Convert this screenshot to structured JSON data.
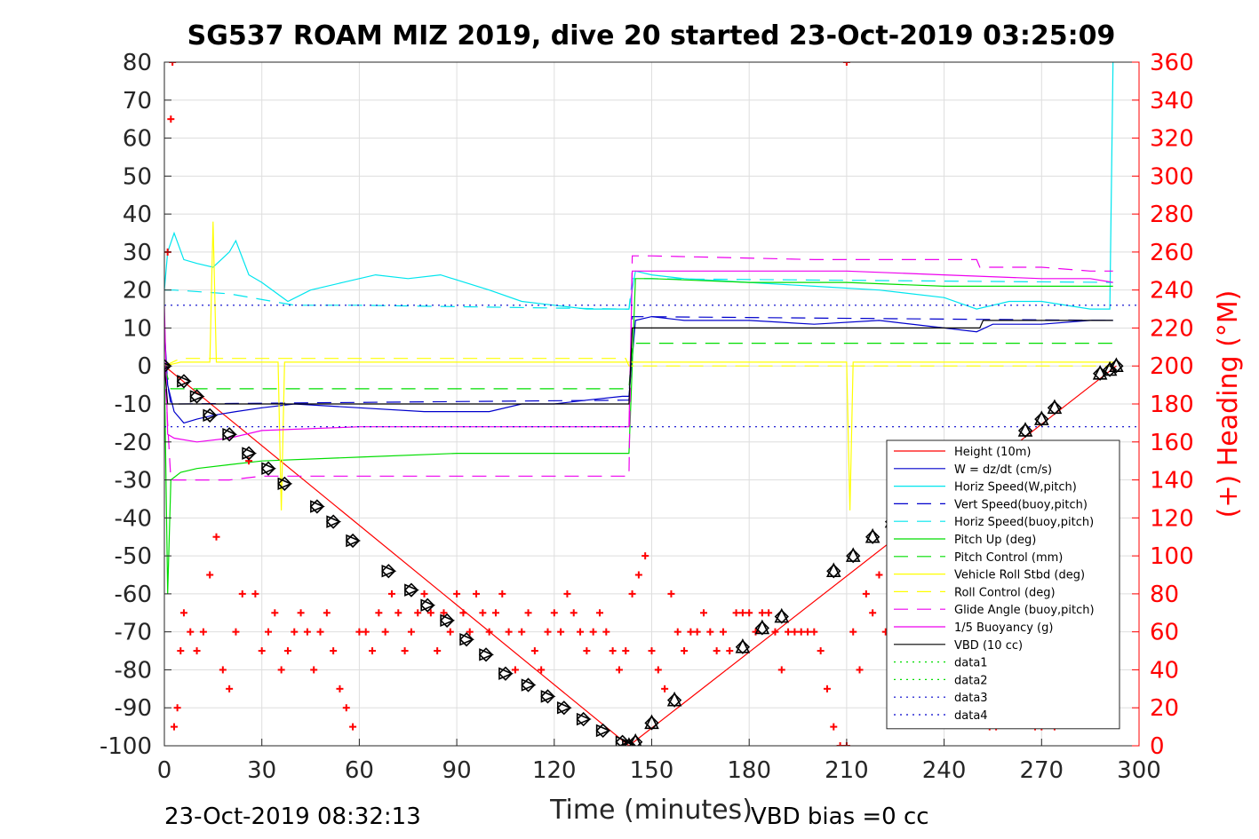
{
  "chart_data": {
    "type": "line",
    "title": "SG537 ROAM MIZ 2019, dive 20 started 23-Oct-2019 03:25:09",
    "xlabel": "Time (minutes)",
    "ylabel_right": "(+) Heading (°M)",
    "xlim": [
      0,
      300
    ],
    "ylim": [
      -100,
      80
    ],
    "ylim_right": [
      0,
      360
    ],
    "x_ticks": [
      "0",
      "30",
      "60",
      "90",
      "120",
      "150",
      "180",
      "210",
      "240",
      "270",
      "300"
    ],
    "y_ticks": [
      "80",
      "70",
      "60",
      "50",
      "40",
      "30",
      "20",
      "10",
      "0",
      "-10",
      "-20",
      "-30",
      "-40",
      "-50",
      "-60",
      "-70",
      "-80",
      "-90",
      "-100"
    ],
    "y_right_ticks": [
      "360",
      "340",
      "320",
      "300",
      "280",
      "260",
      "240",
      "220",
      "200",
      "180",
      "160",
      "140",
      "120",
      "100",
      "80",
      "60",
      "40",
      "20",
      "0"
    ],
    "grid": true,
    "legend_position": "lower-right",
    "footer_left": "23-Oct-2019 08:32:13",
    "footer_right": "VBD bias =0 cc",
    "series": [
      {
        "name": "Height (10m)",
        "color": "#ff0000",
        "dash": "solid",
        "x": [
          0,
          143,
          293
        ],
        "y": [
          0,
          -100,
          0
        ]
      },
      {
        "name": "W = dz/dt (cm/s)",
        "color": "#0000cc",
        "dash": "solid",
        "x": [
          0,
          1,
          3,
          6,
          10,
          15,
          22,
          30,
          40,
          60,
          80,
          100,
          110,
          120,
          130,
          141,
          143,
          145,
          150,
          160,
          180,
          200,
          220,
          240,
          250,
          255,
          270,
          285,
          292
        ],
        "y": [
          10,
          -5,
          -12,
          -15,
          -14,
          -13,
          -12,
          -11,
          -10,
          -11,
          -12,
          -12,
          -10,
          -10,
          -9,
          -8,
          -8,
          12,
          13,
          12,
          12,
          11,
          12,
          10,
          9,
          11,
          11,
          12,
          12
        ]
      },
      {
        "name": "Horiz Speed(W,pitch)",
        "color": "#00e5ee",
        "dash": "solid",
        "x": [
          0,
          1,
          3,
          6,
          10,
          15,
          20,
          22,
          26,
          30,
          38,
          45,
          55,
          65,
          75,
          85,
          100,
          110,
          120,
          130,
          141,
          143,
          145,
          150,
          160,
          180,
          200,
          220,
          240,
          250,
          260,
          270,
          285,
          291,
          292
        ],
        "y": [
          20,
          30,
          35,
          28,
          27,
          26,
          30,
          33,
          24,
          22,
          17,
          20,
          22,
          24,
          23,
          24,
          20,
          17,
          16,
          15,
          15,
          15,
          25,
          24,
          23,
          22,
          21,
          20,
          18,
          15,
          17,
          17,
          15,
          15,
          80
        ]
      },
      {
        "name": "Vert Speed(buoy,pitch)",
        "color": "#0000cc",
        "dash": "dashed",
        "x": [
          0,
          2,
          4,
          142,
          143,
          144,
          292
        ],
        "y": [
          0,
          -10,
          -10,
          -9,
          -9,
          13,
          12
        ]
      },
      {
        "name": "Horiz Speed(buoy,pitch)",
        "color": "#00e5ee",
        "dash": "dashed",
        "x": [
          0,
          3,
          20,
          40,
          60,
          142,
          143,
          144,
          292
        ],
        "y": [
          20,
          20,
          19,
          16,
          16,
          15,
          15,
          23,
          22
        ]
      },
      {
        "name": "Pitch Up (deg)",
        "color": "#00dd00",
        "dash": "solid",
        "x": [
          0,
          1,
          2,
          5,
          10,
          20,
          30,
          60,
          90,
          120,
          141,
          143,
          145,
          150,
          180,
          210,
          240,
          270,
          292
        ],
        "y": [
          0,
          -60,
          -30,
          -28,
          -27,
          -26,
          -25,
          -24,
          -23,
          -23,
          -23,
          -23,
          23,
          23,
          22,
          22,
          21,
          21,
          21
        ]
      },
      {
        "name": "Pitch Control (mm)",
        "color": "#00dd00",
        "dash": "dashed",
        "x": [
          0,
          2,
          4,
          142,
          143,
          144,
          292
        ],
        "y": [
          0,
          -6,
          -6,
          -6,
          -6,
          6,
          6
        ]
      },
      {
        "name": "Vehicle Roll Stbd (deg)",
        "color": "#ffff00",
        "dash": "solid",
        "x": [
          0,
          5,
          10,
          14,
          15,
          16,
          20,
          30,
          35,
          36,
          37,
          40,
          60,
          80,
          100,
          120,
          130,
          140,
          150,
          160,
          180,
          200,
          210,
          211,
          212,
          220,
          240,
          260,
          280,
          292
        ],
        "y": [
          0,
          1,
          1,
          1,
          38,
          1,
          1,
          1,
          1,
          -38,
          1,
          1,
          1,
          1,
          1,
          1,
          1,
          1,
          1,
          1,
          1,
          1,
          1,
          -38,
          1,
          1,
          1,
          1,
          1,
          1
        ]
      },
      {
        "name": "Roll Control (deg)",
        "color": "#ffff00",
        "dash": "dashed",
        "x": [
          0,
          5,
          142,
          143,
          144,
          292
        ],
        "y": [
          0,
          2,
          2,
          0,
          0,
          0
        ]
      },
      {
        "name": "Glide Angle (buoy,pitch)",
        "color": "#ee00ee",
        "dash": "dashed",
        "x": [
          0,
          2,
          4,
          10,
          20,
          30,
          60,
          90,
          120,
          142,
          143,
          144,
          150,
          200,
          250,
          251,
          270,
          285,
          292
        ],
        "y": [
          0,
          -30,
          -30,
          -30,
          -30,
          -29,
          -29,
          -29,
          -29,
          -29,
          -29,
          29,
          29,
          28,
          28,
          26,
          26,
          25,
          25
        ]
      },
      {
        "name": "1/5 Buoyancy (g)",
        "color": "#ee00ee",
        "dash": "solid",
        "x": [
          0,
          1,
          3,
          10,
          20,
          30,
          60,
          90,
          120,
          142,
          143,
          144,
          150,
          180,
          210,
          240,
          270,
          285,
          292
        ],
        "y": [
          16,
          -18,
          -19,
          -20,
          -19,
          -17,
          -16,
          -16,
          -16,
          -16,
          -16,
          25,
          25,
          25,
          25,
          24,
          23,
          23,
          22
        ]
      },
      {
        "name": "VBD (10 cc)",
        "color": "#000000",
        "dash": "solid",
        "x": [
          0,
          1,
          2,
          142,
          143,
          144,
          251,
          252,
          292
        ],
        "y": [
          0,
          -10,
          -10,
          -10,
          -10,
          10,
          10,
          12,
          12
        ]
      },
      {
        "name": "data1",
        "color": "#00dd00",
        "dash": "dotted",
        "x": [],
        "y": []
      },
      {
        "name": "data2",
        "color": "#00dd00",
        "dash": "dotted",
        "x": [],
        "y": []
      },
      {
        "name": "data3",
        "color": "#0000cc",
        "dash": "dotted",
        "x": [
          0,
          300
        ],
        "y": [
          16,
          16
        ]
      },
      {
        "name": "data4",
        "color": "#0000cc",
        "dash": "dotted",
        "x": [
          0,
          300
        ],
        "y": [
          -16,
          -16
        ]
      }
    ],
    "heading_series": {
      "color": "#ff0000",
      "marker": "+",
      "axis": "right",
      "x": [
        1,
        2,
        2.5,
        3,
        4,
        5,
        6,
        8,
        10,
        12,
        14,
        16,
        18,
        20,
        22,
        24,
        26,
        28,
        30,
        32,
        34,
        36,
        38,
        40,
        42,
        44,
        46,
        48,
        50,
        52,
        54,
        56,
        58,
        60,
        62,
        64,
        66,
        68,
        70,
        72,
        74,
        76,
        78,
        80,
        82,
        84,
        86,
        88,
        90,
        92,
        94,
        96,
        98,
        100,
        102,
        104,
        106,
        108,
        110,
        112,
        114,
        116,
        118,
        120,
        122,
        124,
        126,
        128,
        130,
        132,
        134,
        136,
        138,
        140,
        142,
        144,
        146,
        148,
        150,
        152,
        154,
        156,
        158,
        160,
        162,
        164,
        166,
        168,
        170,
        172,
        174,
        176,
        178,
        180,
        182,
        184,
        186,
        188,
        190,
        192,
        194,
        196,
        198,
        200,
        202,
        204,
        206,
        208,
        210,
        212,
        214,
        216,
        218,
        220,
        222,
        224,
        226,
        228,
        230,
        232,
        234,
        236,
        238,
        240,
        242,
        244,
        246,
        248,
        250,
        252,
        254,
        256,
        258,
        260,
        262,
        264,
        266,
        268,
        270,
        272,
        274,
        276,
        278,
        280,
        282,
        284,
        286,
        288,
        290,
        292,
        210
      ],
      "y": [
        260,
        330,
        360,
        10,
        20,
        50,
        70,
        60,
        50,
        60,
        90,
        110,
        40,
        30,
        60,
        80,
        150,
        80,
        50,
        60,
        70,
        40,
        50,
        60,
        70,
        60,
        40,
        60,
        70,
        50,
        30,
        20,
        10,
        60,
        60,
        50,
        70,
        60,
        80,
        70,
        50,
        60,
        70,
        80,
        70,
        50,
        70,
        60,
        80,
        70,
        60,
        80,
        70,
        60,
        70,
        80,
        60,
        40,
        60,
        70,
        50,
        40,
        60,
        70,
        60,
        80,
        70,
        60,
        50,
        60,
        70,
        60,
        50,
        40,
        50,
        80,
        90,
        100,
        50,
        40,
        30,
        80,
        60,
        50,
        60,
        60,
        70,
        60,
        50,
        60,
        50,
        70,
        70,
        70,
        60,
        70,
        70,
        60,
        40,
        60,
        60,
        60,
        60,
        60,
        50,
        30,
        10,
        0,
        0,
        60,
        40,
        80,
        70,
        90,
        60,
        50,
        70,
        40,
        50,
        70,
        60,
        50,
        40,
        30,
        80,
        60,
        50,
        40,
        30,
        20,
        10,
        10,
        20,
        60,
        50,
        40,
        30,
        10,
        10,
        20,
        10,
        20,
        40,
        60,
        40,
        30,
        60,
        80,
        60,
        40,
        360
      ]
    },
    "depth_markers": {
      "color": "#000000",
      "down": {
        "x": [
          0,
          6,
          10,
          14,
          20,
          26,
          32,
          37,
          47,
          52,
          58,
          69,
          76,
          81,
          87,
          93,
          99,
          105,
          112,
          118,
          123,
          129,
          135,
          141,
          143
        ],
        "y": [
          0,
          -4,
          -8,
          -13,
          -18,
          -23,
          -27,
          -31,
          -37,
          -41,
          -46,
          -54,
          -59,
          -63,
          -67,
          -72,
          -76,
          -81,
          -84,
          -87,
          -90,
          -93,
          -96,
          -99,
          -100
        ]
      },
      "up": {
        "x": [
          143,
          145,
          150,
          157,
          178,
          184,
          190,
          206,
          212,
          218,
          224,
          265,
          270,
          274,
          288,
          291,
          293
        ],
        "y": [
          -100,
          -99,
          -94,
          -88,
          -74,
          -69,
          -66,
          -54,
          -50,
          -45,
          -41,
          -17,
          -14,
          -11,
          -2,
          -1,
          0
        ]
      }
    }
  }
}
